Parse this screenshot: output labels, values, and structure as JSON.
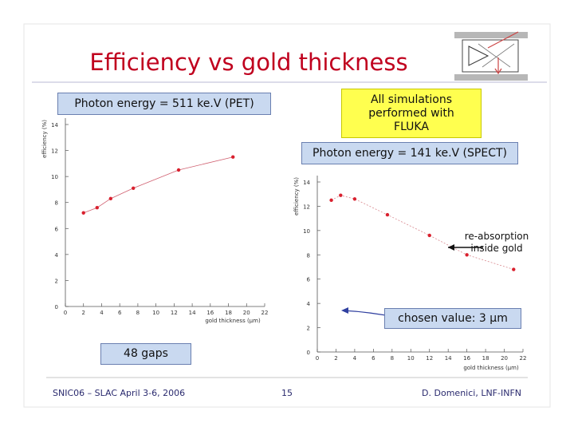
{
  "slide": {
    "title": "Efficiency vs gold thickness",
    "note_fluka": "All simulations performed with FLUKA",
    "note_gaps": "48 gaps",
    "footer_left": "SNIC06 – SLAC April 3-6, 2006",
    "footer_page": "15",
    "footer_right": "D. Domenici, LNF-INFN",
    "colors": {
      "title": "#c0001e",
      "footer": "#2a2a6e",
      "marker": "#d9202e",
      "box_fill": "#c9d9f0"
    }
  },
  "chart_data": [
    {
      "type": "scatter",
      "title": "Photon energy = 511 ke.V (PET)",
      "xlabel": "gold thickness (µm)",
      "ylabel": "efficiency (%)",
      "xlim": [
        0,
        22
      ],
      "ylim": [
        0,
        14
      ],
      "xticks": [
        "0",
        "2",
        "4",
        "6",
        "8",
        "10",
        "12",
        "14",
        "16",
        "18",
        "20",
        "22"
      ],
      "yticks": [
        "0",
        "2",
        "4",
        "6",
        "8",
        "10",
        "12",
        "14"
      ],
      "points": [
        {
          "x": 2,
          "y": 7.2
        },
        {
          "x": 3.5,
          "y": 7.6
        },
        {
          "x": 5,
          "y": 8.3
        },
        {
          "x": 7.5,
          "y": 9.1
        },
        {
          "x": 12.5,
          "y": 10.5
        },
        {
          "x": 18.5,
          "y": 11.5
        }
      ]
    },
    {
      "type": "scatter",
      "title": "Photon energy = 141 ke.V (SPECT)",
      "xlabel": "gold thickness (µm)",
      "ylabel": "efficiency (%)",
      "xlim": [
        0,
        22
      ],
      "ylim": [
        0,
        14
      ],
      "xticks": [
        "0",
        "2",
        "4",
        "6",
        "8",
        "10",
        "12",
        "14",
        "16",
        "18",
        "20",
        "22"
      ],
      "yticks": [
        "0",
        "2",
        "4",
        "6",
        "8",
        "10",
        "12",
        "14"
      ],
      "points": [
        {
          "x": 1.5,
          "y": 12.5
        },
        {
          "x": 2.5,
          "y": 12.9
        },
        {
          "x": 4,
          "y": 12.6
        },
        {
          "x": 7.5,
          "y": 11.3
        },
        {
          "x": 12,
          "y": 9.6
        },
        {
          "x": 16,
          "y": 8.0
        },
        {
          "x": 21,
          "y": 6.8
        }
      ],
      "annotations": {
        "reabsorption": "re-absorption inside gold",
        "chosen": "chosen value: 3 µm"
      }
    }
  ]
}
